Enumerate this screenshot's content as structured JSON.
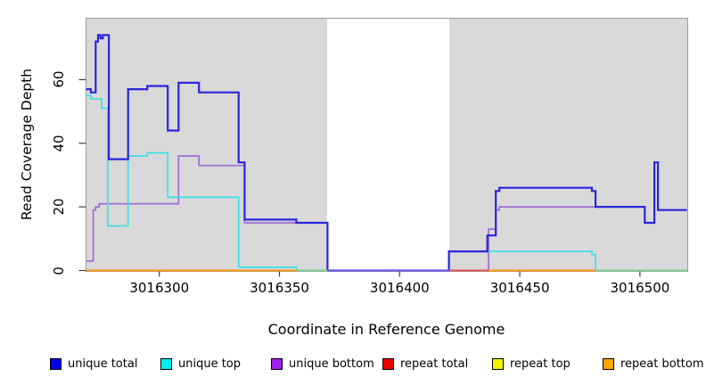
{
  "y_axis": {
    "label": "Read Coverage Depth",
    "ticks": [
      0,
      20,
      40,
      60
    ]
  },
  "x_axis": {
    "label": "Coordinate in Reference Genome",
    "ticks": [
      3016300,
      3016350,
      3016400,
      3016450,
      3016500
    ]
  },
  "legend": [
    {
      "label": "unique total",
      "swatch_color": "#0000EE"
    },
    {
      "label": "unique top",
      "swatch_color": "#00EEEE"
    },
    {
      "label": "unique bottom",
      "swatch_color": "#A020F0"
    },
    {
      "label": "repeat total",
      "swatch_color": "#EE0000"
    },
    {
      "label": "repeat top",
      "swatch_color": "#F2F200"
    },
    {
      "label": "repeat bottom",
      "swatch_color": "#FFA500"
    }
  ],
  "chart_data": {
    "type": "line",
    "step": true,
    "title": "",
    "xlabel": "Coordinate in Reference Genome",
    "ylabel": "Read Coverage Depth",
    "xlim": [
      3016269.5,
      3016519.5
    ],
    "ylim": [
      0,
      79.3
    ],
    "grid": false,
    "plot_background": "#d9d9d9",
    "no_data_gap": {
      "from": 3016370,
      "to": 3016420.5,
      "color": "#ffffff"
    },
    "series": [
      {
        "name": "repeat total",
        "color": "#DD3333",
        "width": 1.5,
        "points": [
          [
            3016269.5,
            0
          ]
        ],
        "xend": 3016519.5
      },
      {
        "name": "repeat top",
        "color": "#EFEF4F",
        "width": 1.5,
        "points": [
          [
            3016269.5,
            0
          ]
        ],
        "xend": 3016519.5
      },
      {
        "name": "repeat bottom",
        "color": "#FF9912",
        "width": 2,
        "points": [
          [
            3016269.5,
            0
          ]
        ],
        "xend": 3016519.5
      },
      {
        "name": "unique bottom",
        "color": "#A06AD4",
        "width": 1.7,
        "points": [
          [
            3016269.5,
            3
          ],
          [
            3016272.5,
            19
          ],
          [
            3016273.5,
            20
          ],
          [
            3016275,
            21
          ],
          [
            3016308,
            36
          ],
          [
            3016316.5,
            33
          ],
          [
            3016335.5,
            15
          ],
          [
            3016370,
            0
          ],
          [
            3016437,
            13
          ],
          [
            3016440,
            19
          ],
          [
            3016441.5,
            20
          ],
          [
            3016502,
            15
          ],
          [
            3016506,
            34
          ],
          [
            3016507.5,
            19
          ]
        ],
        "xend": 3016519.5
      },
      {
        "name": "unique top",
        "color": "#3FDFE9",
        "width": 1.7,
        "points": [
          [
            3016269.5,
            55
          ],
          [
            3016271.5,
            54
          ],
          [
            3016276,
            51
          ],
          [
            3016278.5,
            14
          ],
          [
            3016287,
            36
          ],
          [
            3016295,
            37
          ],
          [
            3016303.5,
            23
          ],
          [
            3016333,
            1
          ],
          [
            3016357,
            0
          ],
          [
            3016420.5,
            6
          ],
          [
            3016480,
            5
          ],
          [
            3016481.5,
            0
          ]
        ],
        "xend": 3016519.5
      },
      {
        "name": "unique total",
        "color": "#2A25DC",
        "width": 2.2,
        "points": [
          [
            3016269.5,
            57
          ],
          [
            3016271.5,
            56
          ],
          [
            3016273.5,
            72
          ],
          [
            3016274.5,
            74
          ],
          [
            3016275.5,
            73
          ],
          [
            3016276.5,
            74
          ],
          [
            3016279,
            35
          ],
          [
            3016287,
            57
          ],
          [
            3016295,
            58
          ],
          [
            3016303.5,
            44
          ],
          [
            3016308,
            59
          ],
          [
            3016316.5,
            56
          ],
          [
            3016333,
            34
          ],
          [
            3016335.5,
            16
          ],
          [
            3016357,
            15
          ],
          [
            3016370,
            0
          ],
          [
            3016420.5,
            6
          ],
          [
            3016436.5,
            11
          ],
          [
            3016440,
            25
          ],
          [
            3016441.5,
            26
          ],
          [
            3016480,
            25
          ],
          [
            3016481.5,
            20
          ],
          [
            3016502,
            15
          ],
          [
            3016506,
            34
          ],
          [
            3016507.5,
            19
          ]
        ],
        "xend": 3016519.5
      }
    ],
    "baseline_overlays": [
      {
        "from": 3016269.5,
        "to": 3016357,
        "color": "#FF9912"
      },
      {
        "from": 3016357,
        "to": 3016370,
        "color": "#7FD096"
      },
      {
        "from": 3016370,
        "to": 3016420.5,
        "color": "#6E5CEE"
      },
      {
        "from": 3016420.5,
        "to": 3016437,
        "color": "#E05353"
      },
      {
        "from": 3016437,
        "to": 3016481.5,
        "color": "#FF9912"
      },
      {
        "from": 3016481.5,
        "to": 3016519.5,
        "color": "#7FD096"
      }
    ],
    "legend_position": "bottom"
  }
}
